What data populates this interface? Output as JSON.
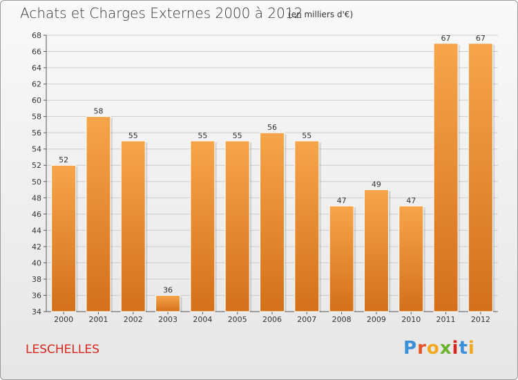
{
  "header": {
    "title": "Achats et Charges Externes 2000 à 2012",
    "subtitle": "(en milliers d'€)"
  },
  "footer": {
    "commune": "LESCHELLES",
    "logo_text": "Proxiti"
  },
  "colors": {
    "bar_light": "#f7a54a",
    "bar_dark": "#d4701a",
    "commune": "#d9251b",
    "grid": "#cccccc"
  },
  "chart_data": {
    "type": "bar",
    "title": "Achats et Charges Externes 2000 à 2012",
    "subtitle": "(en milliers d'€)",
    "xlabel": "",
    "ylabel": "",
    "categories": [
      "2000",
      "2001",
      "2002",
      "2003",
      "2004",
      "2005",
      "2006",
      "2007",
      "2008",
      "2009",
      "2010",
      "2011",
      "2012"
    ],
    "values": [
      52,
      58,
      55,
      36,
      55,
      55,
      56,
      55,
      47,
      49,
      47,
      67,
      67
    ],
    "ylim": [
      34,
      68
    ],
    "yticks": [
      34,
      36,
      38,
      40,
      42,
      44,
      46,
      48,
      50,
      52,
      54,
      56,
      58,
      60,
      62,
      64,
      66,
      68
    ],
    "grid": true,
    "legend": "none"
  }
}
